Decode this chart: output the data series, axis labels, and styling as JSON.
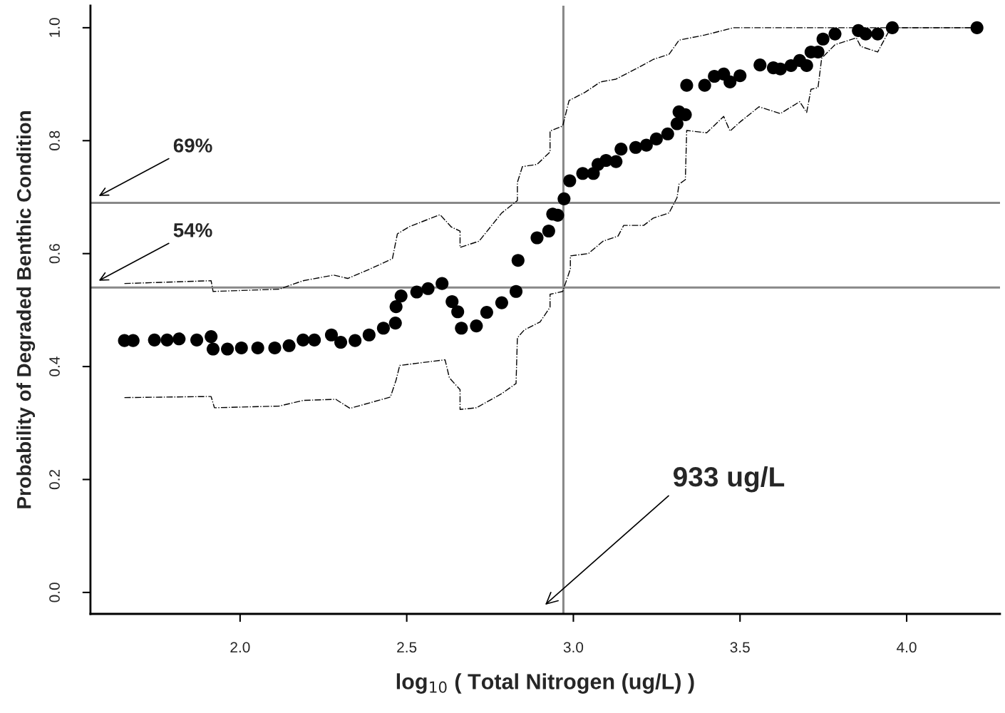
{
  "chart_data": {
    "type": "scatter",
    "xlabel": "log$_{10}$ ( Total Nitrogen (ug/L) )",
    "ylabel": "Probability of Degraded Benthic Condition",
    "xlim": [
      1.551,
      4.28
    ],
    "ylim": [
      -0.038,
      1.039
    ],
    "xticks": [
      {
        "value": 2,
        "label": "2.0"
      },
      {
        "value": 2.5,
        "label": "2.5"
      },
      {
        "value": 3,
        "label": "3.0"
      },
      {
        "value": 3.5,
        "label": "3.5"
      },
      {
        "value": 4,
        "label": "4.0"
      }
    ],
    "yticks": [
      {
        "value": 0,
        "label": "0.0"
      },
      {
        "value": 0.2,
        "label": "0.2"
      },
      {
        "value": 0.4,
        "label": "0.4"
      },
      {
        "value": 0.6,
        "label": "0.6"
      },
      {
        "value": 0.8,
        "label": "0.8"
      },
      {
        "value": 1,
        "label": "1.0"
      }
    ],
    "grid": false,
    "marker": "circle",
    "series": [
      {
        "color": "#000000",
        "x": [
          1.653,
          1.679,
          1.743,
          1.781,
          1.817,
          1.87,
          1.913,
          1.919,
          1.962,
          2.004,
          2.053,
          2.104,
          2.147,
          2.189,
          2.223,
          2.274,
          2.302,
          2.345,
          2.387,
          2.43,
          2.466,
          2.468,
          2.483,
          2.53,
          2.564,
          2.606,
          2.636,
          2.653,
          2.664,
          2.709,
          2.74,
          2.785,
          2.828,
          2.834,
          2.891,
          2.926,
          2.938,
          2.953,
          2.972,
          2.989,
          3.028,
          3.06,
          3.074,
          3.098,
          3.128,
          3.143,
          3.187,
          3.219,
          3.249,
          3.283,
          3.311,
          3.317,
          3.336,
          3.34,
          3.394,
          3.423,
          3.451,
          3.47,
          3.5,
          3.56,
          3.6,
          3.621,
          3.653,
          3.679,
          3.7,
          3.713,
          3.734,
          3.749,
          3.785,
          3.855,
          3.877,
          3.913,
          3.957,
          4.211
        ],
        "values": [
          0.446,
          0.446,
          0.447,
          0.447,
          0.449,
          0.447,
          0.453,
          0.431,
          0.431,
          0.433,
          0.433,
          0.433,
          0.437,
          0.447,
          0.447,
          0.456,
          0.443,
          0.446,
          0.456,
          0.468,
          0.477,
          0.506,
          0.525,
          0.532,
          0.538,
          0.547,
          0.515,
          0.497,
          0.468,
          0.472,
          0.496,
          0.513,
          0.533,
          0.588,
          0.628,
          0.64,
          0.67,
          0.668,
          0.697,
          0.729,
          0.742,
          0.742,
          0.758,
          0.765,
          0.763,
          0.785,
          0.788,
          0.792,
          0.803,
          0.812,
          0.83,
          0.851,
          0.846,
          0.898,
          0.898,
          0.914,
          0.918,
          0.904,
          0.915,
          0.934,
          0.929,
          0.927,
          0.933,
          0.942,
          0.933,
          0.957,
          0.957,
          0.98,
          0.989,
          0.995,
          0.989,
          0.989,
          1.0,
          1.0
        ]
      },
      {
        "type": "line",
        "color": "#000000",
        "line_style": "dashdot",
        "marker": "none",
        "x": [
          1.653,
          1.913,
          1.919,
          2.117,
          2.189,
          2.281,
          2.323,
          2.387,
          2.457,
          2.472,
          2.509,
          2.6,
          2.634,
          2.66,
          2.66,
          2.717,
          2.785,
          2.832,
          2.832,
          2.847,
          2.891,
          2.93,
          2.93,
          2.968,
          2.987,
          3.036,
          3.081,
          3.128,
          3.187,
          3.24,
          3.287,
          3.317,
          3.394,
          3.481,
          4.211
        ],
        "values": [
          0.547,
          0.552,
          0.533,
          0.537,
          0.552,
          0.562,
          0.556,
          0.572,
          0.591,
          0.635,
          0.648,
          0.669,
          0.647,
          0.64,
          0.611,
          0.622,
          0.672,
          0.694,
          0.726,
          0.754,
          0.758,
          0.78,
          0.817,
          0.826,
          0.871,
          0.886,
          0.904,
          0.909,
          0.927,
          0.944,
          0.953,
          0.978,
          0.987,
          1.0,
          1.0
        ]
      },
      {
        "type": "line",
        "color": "#000000",
        "line_style": "dashdot",
        "marker": "none",
        "x": [
          1.653,
          1.913,
          1.923,
          2.117,
          2.189,
          2.287,
          2.33,
          2.451,
          2.468,
          2.479,
          2.615,
          2.628,
          2.66,
          2.66,
          2.709,
          2.785,
          2.828,
          2.832,
          2.853,
          2.9,
          2.93,
          2.93,
          2.968,
          2.991,
          2.991,
          3.045,
          3.089,
          3.134,
          3.151,
          3.211,
          3.24,
          3.287,
          3.311,
          3.317,
          3.336,
          3.34,
          3.4,
          3.451,
          3.47,
          3.5,
          3.557,
          3.621,
          3.679,
          3.7,
          3.713,
          3.734,
          3.745,
          3.785,
          3.849,
          3.862,
          3.913,
          3.945,
          3.957,
          4.211
        ],
        "values": [
          0.345,
          0.347,
          0.327,
          0.33,
          0.34,
          0.342,
          0.326,
          0.346,
          0.376,
          0.402,
          0.412,
          0.38,
          0.359,
          0.324,
          0.327,
          0.352,
          0.37,
          0.451,
          0.465,
          0.479,
          0.505,
          0.528,
          0.533,
          0.573,
          0.596,
          0.6,
          0.622,
          0.631,
          0.65,
          0.65,
          0.663,
          0.672,
          0.699,
          0.723,
          0.731,
          0.818,
          0.814,
          0.843,
          0.817,
          0.833,
          0.86,
          0.848,
          0.869,
          0.85,
          0.891,
          0.894,
          0.946,
          0.97,
          0.982,
          0.967,
          0.957,
          0.992,
          1.0,
          1.0
        ]
      }
    ],
    "ref_lines": [
      {
        "axis": "y",
        "value": 0.69,
        "label": "69%",
        "color": "#888888"
      },
      {
        "axis": "y",
        "value": 0.54,
        "label": "54%",
        "color": "#888888"
      },
      {
        "axis": "x",
        "value": 2.97,
        "color": "#888888"
      }
    ],
    "annotations": [
      "933 ug/L"
    ]
  }
}
